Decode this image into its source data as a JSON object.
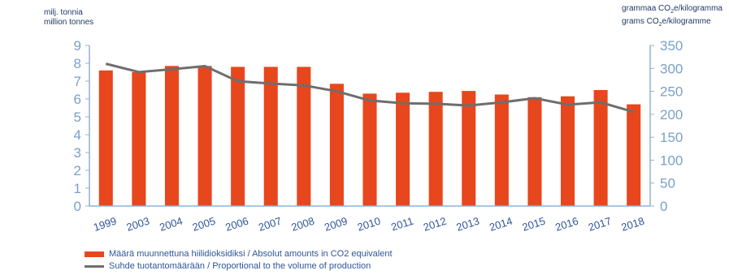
{
  "left_unit": {
    "line1": "milj. tonnia",
    "line2": "million tonnes"
  },
  "right_unit": {
    "line1_pre": "grammaa CO",
    "line1_sub": "2",
    "line1_post": "e/kilogramma",
    "line2_pre": "grams CO",
    "line2_sub": "2",
    "line2_post": "e/kilogramme"
  },
  "legend": {
    "bars_label": "Määrä muunnettuna hiilidioksidiksi / Absolut amounts in CO2 equivalent",
    "line_label": "Suhde tuotantomäärään / Proportional to the volume of production"
  },
  "colors": {
    "bar": "#e8461d",
    "line": "#6e6e6e",
    "axis": "#8fb2d6"
  },
  "chart_data": {
    "type": "bar",
    "categories": [
      "1999",
      "2003",
      "2004",
      "2005",
      "2006",
      "2007",
      "2008",
      "2009",
      "2010",
      "2011",
      "2012",
      "2013",
      "2014",
      "2015",
      "2016",
      "2017",
      "2018"
    ],
    "series": [
      {
        "name": "Määrä muunnettuna hiilidioksidiksi / Absolut amounts in CO2 equivalent",
        "type": "bar",
        "axis": "left",
        "values": [
          7.6,
          7.5,
          7.85,
          7.85,
          7.8,
          7.8,
          7.8,
          6.85,
          6.3,
          6.35,
          6.4,
          6.45,
          6.25,
          6.1,
          6.15,
          6.5,
          5.7
        ]
      },
      {
        "name": "Suhde tuotantomäärään / Proportional to the volume of production",
        "type": "line",
        "axis": "right",
        "values": [
          310,
          292,
          298,
          305,
          272,
          267,
          263,
          250,
          230,
          224,
          223,
          219,
          226,
          235,
          221,
          226,
          205
        ]
      }
    ],
    "y_left": {
      "min": 0,
      "max": 9,
      "ticks": [
        0,
        1,
        2,
        3,
        4,
        5,
        6,
        7,
        8,
        9
      ]
    },
    "y_right": {
      "min": 0,
      "max": 350,
      "ticks": [
        0,
        50,
        100,
        150,
        200,
        250,
        300,
        350
      ]
    },
    "grid": false,
    "legend_position": "bottom"
  }
}
